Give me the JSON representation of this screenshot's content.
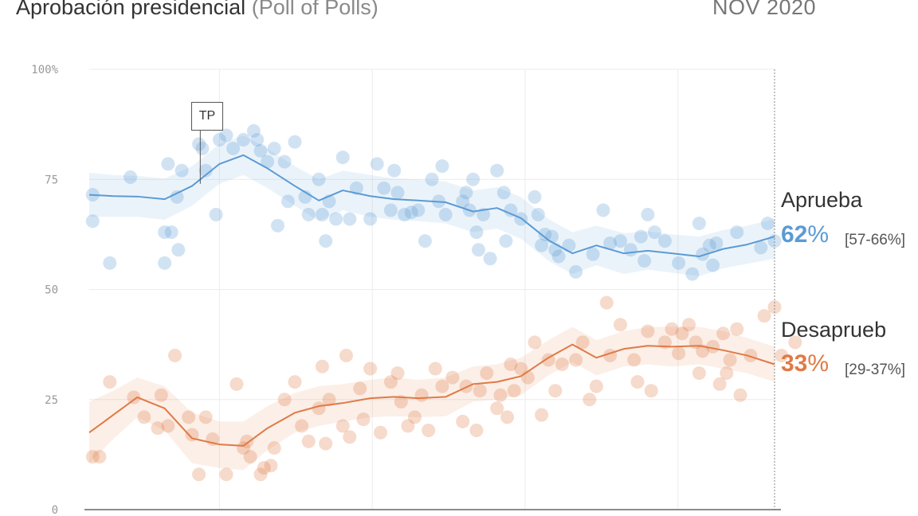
{
  "header": {
    "title": "Aprobación presidencial",
    "subtitle": "(Poll of Polls)",
    "date": "NOV 2020"
  },
  "colors": {
    "approve": "#5b9bd5",
    "disapprove": "#e07a45",
    "grid": "#ececec",
    "axis": "#999999",
    "ticks": "#999999"
  },
  "chart_data": {
    "type": "line",
    "title": "Aprobación presidencial (Poll of Polls)",
    "ylim": [
      0,
      100
    ],
    "yticks": [
      0,
      25,
      50,
      75,
      100
    ],
    "ytick_labels": [
      "0",
      "25",
      "50",
      "75",
      "100%"
    ],
    "xlim": [
      0,
      100
    ],
    "annotation": {
      "label": "TP",
      "x": 16.2
    },
    "series": [
      {
        "name": "Aprueba",
        "color": "#5b9bd5",
        "x": [
          0,
          3.5,
          7,
          11,
          15,
          19,
          22.5,
          26,
          30,
          33.5,
          37,
          41,
          44.5,
          48,
          52,
          56,
          59.5,
          63,
          67,
          70.5,
          74,
          78,
          81.5,
          85,
          89,
          92.5,
          96,
          100
        ],
        "y": [
          71.5,
          71.2,
          71.1,
          70.5,
          73.5,
          78.5,
          80.5,
          77.5,
          73.5,
          70.2,
          72.5,
          71.2,
          70.5,
          70.2,
          69.8,
          67.7,
          68.5,
          66.2,
          61.2,
          58.2,
          60,
          58.2,
          58.8,
          58.2,
          57.5,
          59.2,
          60.2,
          62
        ],
        "band_upper": [
          76.5,
          76,
          75.8,
          75.2,
          78,
          83,
          85,
          82,
          78,
          75,
          77,
          76,
          75.2,
          75,
          74.5,
          72.5,
          73.2,
          71,
          66,
          63,
          64.5,
          62.8,
          63.2,
          62.5,
          62,
          63.5,
          64.5,
          66
        ],
        "band_lower": [
          66.5,
          66.5,
          66.5,
          65.8,
          69,
          74,
          76,
          73,
          69,
          65.5,
          68,
          66.5,
          65.8,
          65.5,
          65,
          63,
          63.8,
          61.5,
          56.5,
          53.5,
          55.5,
          53.5,
          54.5,
          53.8,
          53,
          54.8,
          55.8,
          57
        ],
        "polls": [
          [
            0.5,
            65.5
          ],
          [
            0.5,
            71.5
          ],
          [
            3,
            56
          ],
          [
            6,
            75.5
          ],
          [
            11,
            63
          ],
          [
            11,
            56
          ],
          [
            11.5,
            78.5
          ],
          [
            12,
            63
          ],
          [
            13,
            59
          ],
          [
            12.8,
            71
          ],
          [
            13.5,
            77
          ],
          [
            16,
            83
          ],
          [
            16.5,
            82
          ],
          [
            17,
            77
          ],
          [
            18.5,
            67
          ],
          [
            19,
            84
          ],
          [
            20,
            85
          ],
          [
            21,
            82
          ],
          [
            22.5,
            84
          ],
          [
            24,
            86
          ],
          [
            24.5,
            84
          ],
          [
            25,
            81.5
          ],
          [
            26,
            79
          ],
          [
            27,
            82
          ],
          [
            27.5,
            64.5
          ],
          [
            28.5,
            79
          ],
          [
            29,
            70
          ],
          [
            30,
            83.5
          ],
          [
            31.5,
            71
          ],
          [
            32,
            67
          ],
          [
            33.5,
            75
          ],
          [
            34,
            67
          ],
          [
            34.5,
            61
          ],
          [
            35,
            70
          ],
          [
            36,
            66
          ],
          [
            37,
            80
          ],
          [
            38,
            66
          ],
          [
            39,
            73
          ],
          [
            41,
            66
          ],
          [
            42,
            78.5
          ],
          [
            43,
            73
          ],
          [
            44,
            68
          ],
          [
            44.5,
            77
          ],
          [
            45,
            72
          ],
          [
            46,
            67
          ],
          [
            47,
            67.5
          ],
          [
            48,
            68
          ],
          [
            49,
            61
          ],
          [
            50,
            75
          ],
          [
            51,
            70
          ],
          [
            51.5,
            78
          ],
          [
            52,
            67
          ],
          [
            54.5,
            70
          ],
          [
            55,
            72
          ],
          [
            55.5,
            68
          ],
          [
            56,
            75
          ],
          [
            56.5,
            63
          ],
          [
            56.8,
            59
          ],
          [
            57.5,
            67
          ],
          [
            58.5,
            57
          ],
          [
            59.5,
            77
          ],
          [
            60.5,
            72
          ],
          [
            60.8,
            61
          ],
          [
            61.5,
            68
          ],
          [
            63,
            66
          ],
          [
            65,
            71
          ],
          [
            65.5,
            67
          ],
          [
            66,
            60
          ],
          [
            66.5,
            62.5
          ],
          [
            67.5,
            62
          ],
          [
            68,
            59
          ],
          [
            68.5,
            57.5
          ],
          [
            70,
            60
          ],
          [
            71,
            54
          ],
          [
            73.5,
            58
          ],
          [
            75,
            68
          ],
          [
            76,
            60.5
          ],
          [
            77.5,
            61
          ],
          [
            79,
            59
          ],
          [
            80.5,
            62
          ],
          [
            81,
            56.5
          ],
          [
            81.5,
            67
          ],
          [
            82.5,
            63
          ],
          [
            84,
            61
          ],
          [
            86,
            56
          ],
          [
            88,
            53.5
          ],
          [
            89,
            65
          ],
          [
            89.5,
            58
          ],
          [
            90.5,
            60
          ],
          [
            91,
            55.5
          ],
          [
            91.5,
            60.5
          ],
          [
            94.5,
            63
          ],
          [
            98,
            59.5
          ],
          [
            99,
            65
          ],
          [
            100,
            61
          ]
        ]
      },
      {
        "name": "Desaprueb",
        "color": "#e07a45",
        "x": [
          0,
          3.5,
          7,
          11,
          15,
          19,
          22.5,
          26,
          30,
          33.5,
          37,
          41,
          44.5,
          48,
          52,
          56,
          59.5,
          63,
          67,
          70.5,
          74,
          78,
          81.5,
          85,
          89,
          92.5,
          96,
          100
        ],
        "y": [
          17.5,
          21.5,
          25.5,
          23,
          16.2,
          14.8,
          14.5,
          18.5,
          22,
          23.5,
          24.2,
          25.3,
          25.6,
          25.3,
          25.6,
          28.5,
          29,
          30.3,
          34.5,
          37.5,
          34.5,
          36.5,
          37.2,
          37,
          37.2,
          36.2,
          35,
          33
        ],
        "band_upper": [
          24.5,
          27,
          30,
          28,
          22,
          20,
          20,
          23.5,
          26.5,
          28,
          28.5,
          29.5,
          30,
          29.5,
          30,
          32.5,
          33,
          34.5,
          38.5,
          41.5,
          38.5,
          40.5,
          41.5,
          41.5,
          41.5,
          40.5,
          39,
          37
        ],
        "band_lower": [
          10.5,
          16,
          21,
          18,
          10.5,
          9.5,
          9,
          13.5,
          17.5,
          19,
          20,
          21,
          21.2,
          21,
          21.2,
          24.5,
          25,
          26,
          30.5,
          33.5,
          30.5,
          32.5,
          33,
          32.5,
          33,
          32,
          31,
          29
        ],
        "polls": [
          [
            0.5,
            12
          ],
          [
            1.5,
            12
          ],
          [
            3,
            29
          ],
          [
            6.5,
            25.5
          ],
          [
            8,
            21
          ],
          [
            10,
            18.5
          ],
          [
            10.5,
            26
          ],
          [
            11.5,
            19
          ],
          [
            12.5,
            35
          ],
          [
            14.5,
            21
          ],
          [
            15,
            17
          ],
          [
            16,
            8
          ],
          [
            17,
            21
          ],
          [
            18,
            16
          ],
          [
            20,
            8
          ],
          [
            21.5,
            28.5
          ],
          [
            22.5,
            14
          ],
          [
            23,
            15.5
          ],
          [
            23.5,
            12
          ],
          [
            25,
            8
          ],
          [
            25.5,
            9.5
          ],
          [
            26.5,
            10
          ],
          [
            27,
            14
          ],
          [
            28.5,
            25
          ],
          [
            30,
            29
          ],
          [
            31,
            19
          ],
          [
            32,
            15.5
          ],
          [
            33.5,
            23
          ],
          [
            34,
            32.5
          ],
          [
            34.5,
            15
          ],
          [
            35,
            25
          ],
          [
            37,
            19
          ],
          [
            37.5,
            35
          ],
          [
            38,
            16.5
          ],
          [
            39.5,
            27.5
          ],
          [
            40,
            20.5
          ],
          [
            41,
            32
          ],
          [
            42.5,
            17.5
          ],
          [
            44,
            29
          ],
          [
            45,
            31
          ],
          [
            45.5,
            24.5
          ],
          [
            46.5,
            19
          ],
          [
            47.5,
            21
          ],
          [
            48.5,
            26
          ],
          [
            49.5,
            18
          ],
          [
            50.5,
            32
          ],
          [
            51.5,
            28
          ],
          [
            53,
            30
          ],
          [
            54.5,
            20
          ],
          [
            55,
            28
          ],
          [
            56.5,
            18
          ],
          [
            57,
            27
          ],
          [
            58,
            31
          ],
          [
            59.5,
            23
          ],
          [
            60,
            26
          ],
          [
            61,
            21
          ],
          [
            61.5,
            33
          ],
          [
            62,
            27
          ],
          [
            63,
            32
          ],
          [
            64,
            30
          ],
          [
            65,
            38
          ],
          [
            66,
            21.5
          ],
          [
            67,
            34
          ],
          [
            68,
            27
          ],
          [
            69,
            33
          ],
          [
            71,
            34
          ],
          [
            72,
            38
          ],
          [
            73,
            25
          ],
          [
            74,
            28
          ],
          [
            75.5,
            47
          ],
          [
            76,
            35
          ],
          [
            77.5,
            42
          ],
          [
            79.5,
            34
          ],
          [
            80,
            29
          ],
          [
            81.5,
            40.5
          ],
          [
            82,
            27
          ],
          [
            84,
            38
          ],
          [
            85,
            41
          ],
          [
            86,
            35.5
          ],
          [
            86.5,
            40
          ],
          [
            87.5,
            42
          ],
          [
            88.5,
            38
          ],
          [
            89,
            31
          ],
          [
            89.5,
            36
          ],
          [
            91,
            37
          ],
          [
            92,
            28.5
          ],
          [
            92.5,
            40
          ],
          [
            93,
            31
          ],
          [
            93.5,
            34
          ],
          [
            94.5,
            41
          ],
          [
            95,
            26
          ],
          [
            96.5,
            35
          ],
          [
            98.5,
            44
          ],
          [
            100,
            46
          ],
          [
            101,
            35
          ],
          [
            103,
            38
          ]
        ]
      }
    ],
    "end_labels": [
      {
        "series": "Aprueba",
        "value": "62",
        "unit": "%",
        "range": "[57-66%]"
      },
      {
        "series": "Desaprueb",
        "value": "33",
        "unit": "%",
        "range": "[29-37%]"
      }
    ]
  }
}
